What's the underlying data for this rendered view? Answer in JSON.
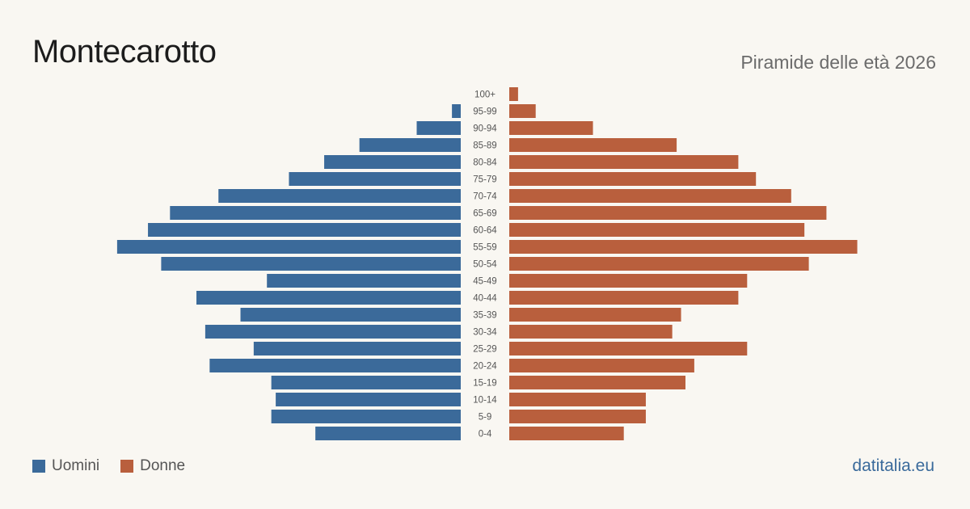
{
  "header": {
    "title": "Montecarotto",
    "subtitle": "Piramide delle età 2026"
  },
  "legend": {
    "men_label": "Uomini",
    "women_label": "Donne"
  },
  "source": "datitalia.eu",
  "colors": {
    "men": "#3b6a9a",
    "women": "#b95f3d",
    "background": "#f9f7f2"
  },
  "chart_data": {
    "type": "bar",
    "orientation": "horizontal-population-pyramid",
    "categories": [
      "100+",
      "95-99",
      "90-94",
      "85-89",
      "80-84",
      "75-79",
      "70-74",
      "65-69",
      "60-64",
      "55-59",
      "50-54",
      "45-49",
      "40-44",
      "35-39",
      "30-34",
      "25-29",
      "20-24",
      "15-19",
      "10-14",
      "5-9",
      "0-4"
    ],
    "series": [
      {
        "name": "Uomini",
        "values": [
          0,
          2,
          10,
          23,
          31,
          39,
          55,
          66,
          71,
          78,
          68,
          44,
          60,
          50,
          58,
          47,
          57,
          43,
          42,
          43,
          33
        ]
      },
      {
        "name": "Donne",
        "values": [
          2,
          6,
          19,
          38,
          52,
          56,
          64,
          72,
          67,
          79,
          68,
          54,
          52,
          39,
          37,
          54,
          42,
          40,
          31,
          31,
          26
        ]
      }
    ],
    "grid": false
  }
}
